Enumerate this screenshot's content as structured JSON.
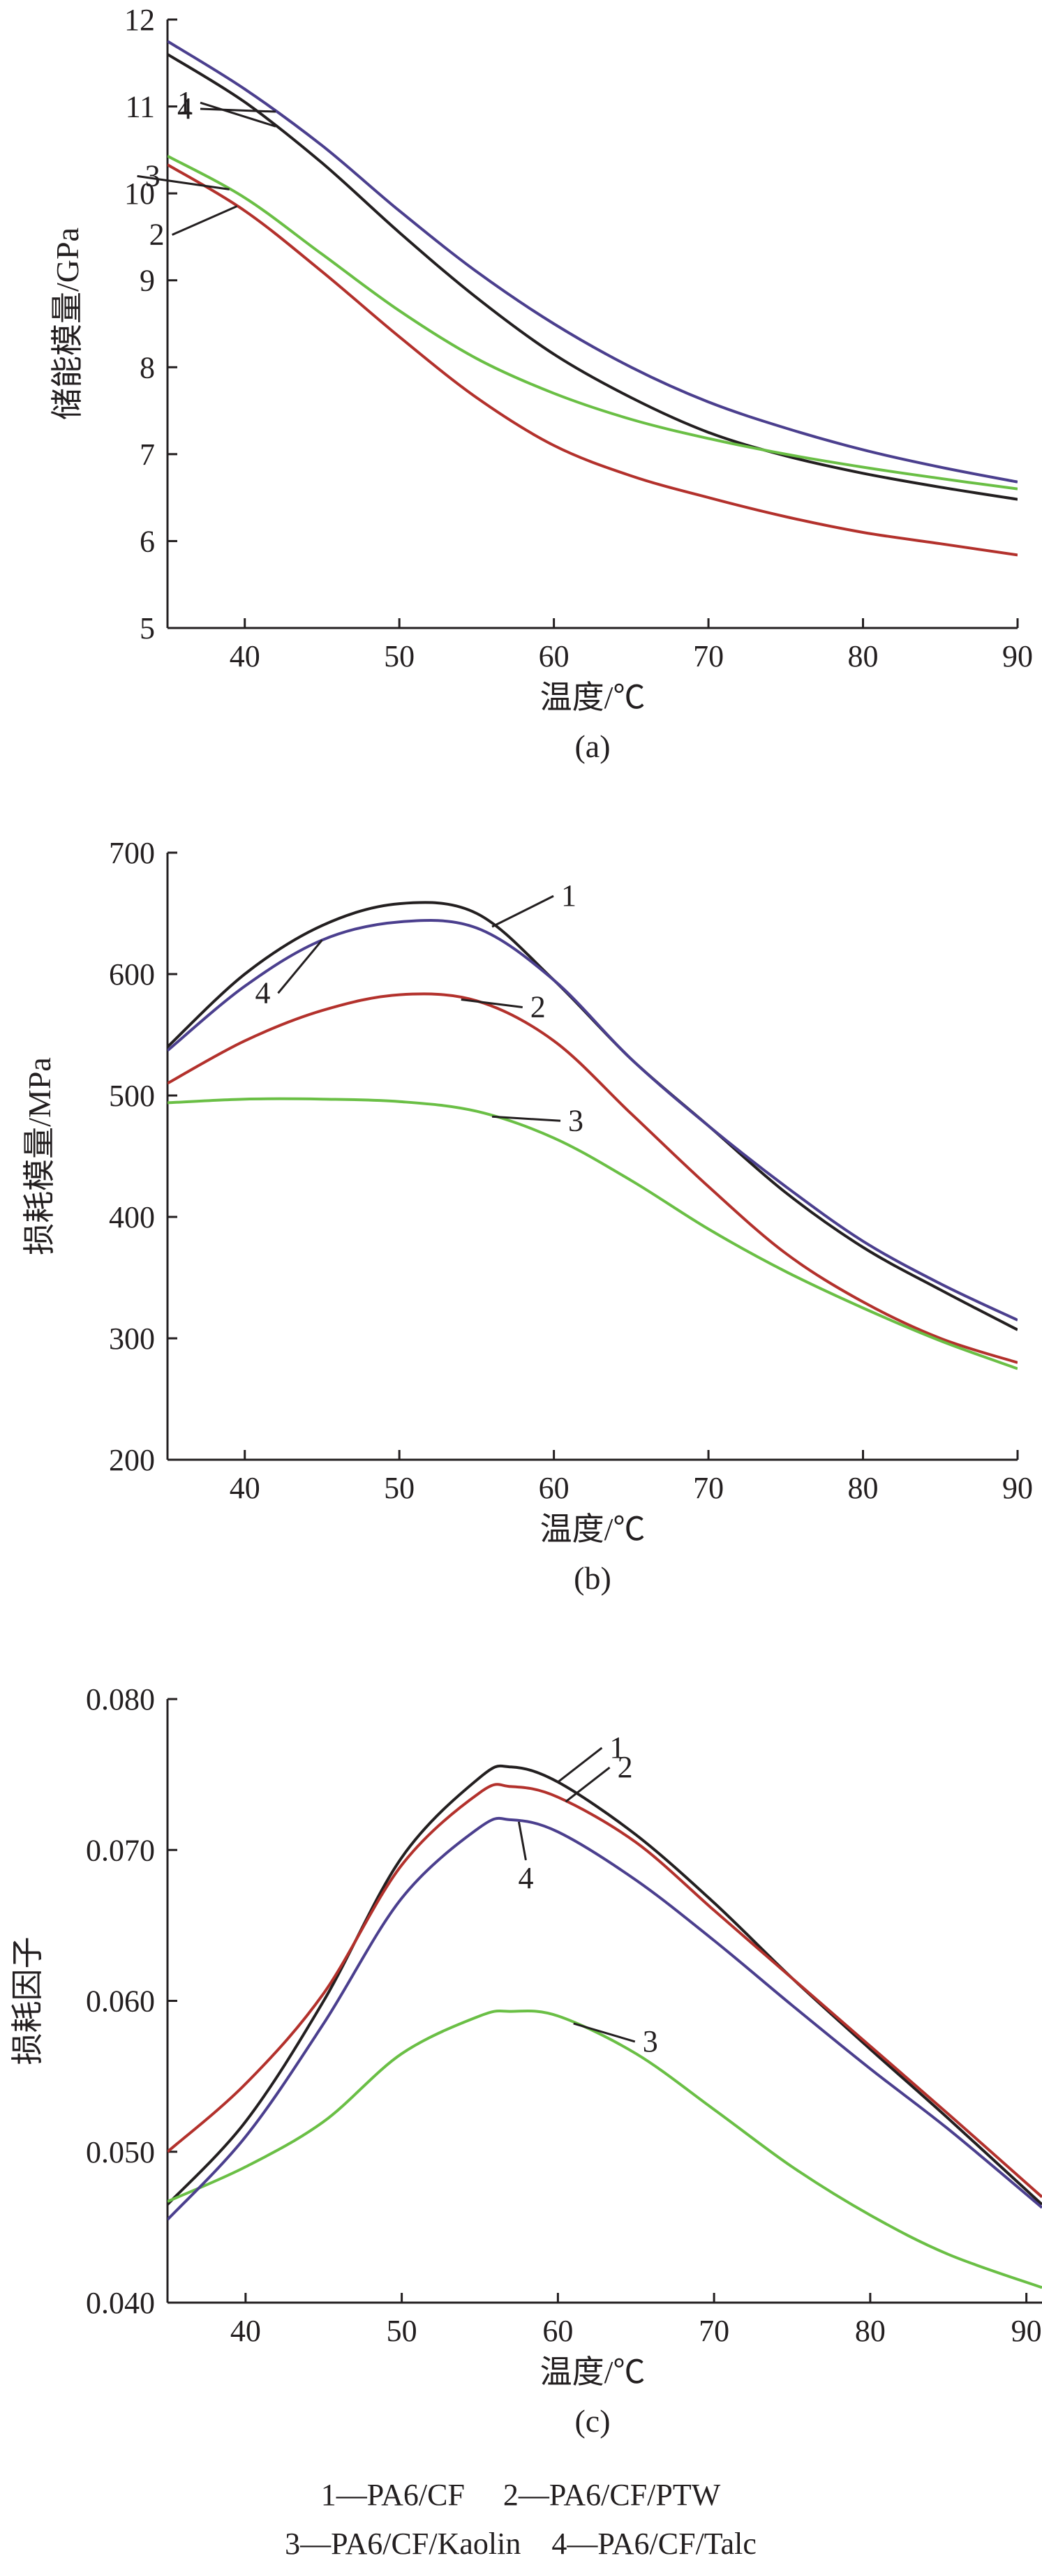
{
  "colors": {
    "series_1": "#231f20",
    "series_2": "#b3312c",
    "series_3": "#6abf45",
    "series_4": "#4b3f8e",
    "axis": "#231f20"
  },
  "legend": {
    "line1": "1—PA6/CF　 2—PA6/CF/PTW",
    "line2": "3—PA6/CF/Kaolin　4—PA6/CF/Talc"
  },
  "chart_data": [
    {
      "type": "line",
      "panel_label": "(a)",
      "xlabel": "温度/℃",
      "ylabel": "储能模量/GPa",
      "xlim": [
        35,
        90
      ],
      "ylim": [
        5,
        12
      ],
      "xticks": [
        40,
        50,
        60,
        70,
        80,
        90
      ],
      "yticks": [
        5,
        6,
        7,
        8,
        9,
        10,
        11,
        12
      ],
      "ytick_labels": [
        "5",
        "6",
        "7",
        "8",
        "9",
        "10",
        "11",
        "12"
      ],
      "grid": false,
      "series": [
        {
          "name": "1",
          "x": [
            35,
            40,
            45,
            50,
            55,
            60,
            65,
            70,
            75,
            80,
            85,
            90
          ],
          "values": [
            11.6,
            11.05,
            10.35,
            9.55,
            8.8,
            8.15,
            7.65,
            7.25,
            6.98,
            6.78,
            6.62,
            6.48
          ]
        },
        {
          "name": "2",
          "x": [
            35,
            40,
            45,
            50,
            55,
            60,
            65,
            70,
            75,
            80,
            85,
            90
          ],
          "values": [
            10.33,
            9.8,
            9.1,
            8.35,
            7.65,
            7.1,
            6.75,
            6.5,
            6.28,
            6.1,
            5.97,
            5.84
          ]
        },
        {
          "name": "3",
          "x": [
            35,
            40,
            45,
            50,
            55,
            60,
            65,
            70,
            75,
            80,
            85,
            90
          ],
          "values": [
            10.43,
            9.95,
            9.3,
            8.65,
            8.1,
            7.7,
            7.4,
            7.18,
            7.0,
            6.85,
            6.72,
            6.6
          ]
        },
        {
          "name": "4",
          "x": [
            35,
            40,
            45,
            50,
            55,
            60,
            65,
            70,
            75,
            80,
            85,
            90
          ],
          "values": [
            11.75,
            11.2,
            10.55,
            9.8,
            9.1,
            8.5,
            8.0,
            7.6,
            7.3,
            7.05,
            6.85,
            6.68
          ]
        }
      ],
      "labels": [
        {
          "text": "1",
          "series": "1",
          "x": 42.0
        },
        {
          "text": "4",
          "series": "4",
          "x": 42.0
        },
        {
          "text": "2",
          "series": "2",
          "x": 39.5
        },
        {
          "text": "3",
          "series": "3",
          "x": 39.0
        }
      ]
    },
    {
      "type": "line",
      "panel_label": "(b)",
      "xlabel": "温度/℃",
      "ylabel": "损耗模量/MPa",
      "xlim": [
        35,
        90
      ],
      "ylim": [
        200,
        700
      ],
      "xticks": [
        40,
        50,
        60,
        70,
        80,
        90
      ],
      "yticks": [
        200,
        300,
        400,
        500,
        600,
        700
      ],
      "ytick_labels": [
        "200",
        "300",
        "400",
        "500",
        "600",
        "700"
      ],
      "grid": false,
      "series": [
        {
          "name": "1",
          "x": [
            35,
            40,
            45,
            50,
            55,
            60,
            65,
            70,
            75,
            80,
            85,
            90
          ],
          "values": [
            540,
            600,
            640,
            658,
            650,
            595,
            530,
            475,
            420,
            375,
            340,
            307
          ]
        },
        {
          "name": "2",
          "x": [
            35,
            40,
            45,
            50,
            55,
            60,
            65,
            70,
            75,
            80,
            85,
            90
          ],
          "values": [
            510,
            545,
            570,
            583,
            578,
            545,
            485,
            425,
            370,
            330,
            300,
            280
          ]
        },
        {
          "name": "3",
          "x": [
            35,
            40,
            45,
            50,
            55,
            60,
            65,
            70,
            75,
            80,
            85,
            90
          ],
          "values": [
            494,
            497,
            497,
            495,
            487,
            465,
            430,
            390,
            355,
            325,
            298,
            275
          ]
        },
        {
          "name": "4",
          "x": [
            35,
            40,
            45,
            50,
            55,
            60,
            65,
            70,
            75,
            80,
            85,
            90
          ],
          "values": [
            537,
            590,
            628,
            643,
            638,
            595,
            530,
            475,
            425,
            380,
            345,
            315
          ]
        }
      ],
      "labels": [
        {
          "text": "1",
          "series": "1",
          "x": 56.0
        },
        {
          "text": "4",
          "series": "4",
          "x": 45.0
        },
        {
          "text": "2",
          "series": "2",
          "x": 54.0
        },
        {
          "text": "3",
          "series": "3",
          "x": 56.0
        }
      ]
    },
    {
      "type": "line",
      "panel_label": "(c)",
      "xlabel": "温度/℃",
      "ylabel": "损耗因子",
      "xlim": [
        35,
        91
      ],
      "ylim": [
        0.04,
        0.08
      ],
      "xticks": [
        40,
        50,
        60,
        70,
        80,
        90
      ],
      "yticks": [
        0.04,
        0.05,
        0.06,
        0.07,
        0.08
      ],
      "ytick_labels": [
        "0.040",
        "0.050",
        "0.060",
        "0.070",
        "0.080"
      ],
      "grid": false,
      "series": [
        {
          "name": "1",
          "x": [
            35,
            40,
            45,
            50,
            55,
            57,
            60,
            65,
            70,
            75,
            80,
            85,
            91
          ],
          "values": [
            0.0465,
            0.052,
            0.06,
            0.0695,
            0.0748,
            0.0755,
            0.0745,
            0.071,
            0.0665,
            0.0615,
            0.0568,
            0.0522,
            0.0465
          ]
        },
        {
          "name": "2",
          "x": [
            35,
            40,
            45,
            50,
            55,
            57,
            60,
            65,
            70,
            75,
            80,
            85,
            91
          ],
          "values": [
            0.05,
            0.0545,
            0.0605,
            0.069,
            0.0738,
            0.0742,
            0.0735,
            0.0705,
            0.066,
            0.0615,
            0.057,
            0.0525,
            0.047
          ]
        },
        {
          "name": "3",
          "x": [
            35,
            40,
            45,
            50,
            55,
            57,
            60,
            65,
            70,
            75,
            80,
            85,
            91
          ],
          "values": [
            0.0467,
            0.049,
            0.052,
            0.0565,
            0.059,
            0.0593,
            0.059,
            0.0565,
            0.0528,
            0.049,
            0.0458,
            0.0432,
            0.041
          ]
        },
        {
          "name": "4",
          "x": [
            35,
            40,
            45,
            50,
            55,
            57,
            60,
            65,
            70,
            75,
            80,
            85,
            91
          ],
          "values": [
            0.0455,
            0.051,
            0.0585,
            0.0668,
            0.0715,
            0.072,
            0.0712,
            0.068,
            0.064,
            0.0597,
            0.0555,
            0.0515,
            0.0463
          ]
        }
      ],
      "labels": [
        {
          "text": "1",
          "series": "1",
          "x": 60.0
        },
        {
          "text": "2",
          "series": "2",
          "x": 60.5
        },
        {
          "text": "4",
          "series": "4",
          "x": 57.5
        },
        {
          "text": "3",
          "series": "3",
          "x": 61.0
        }
      ]
    }
  ]
}
